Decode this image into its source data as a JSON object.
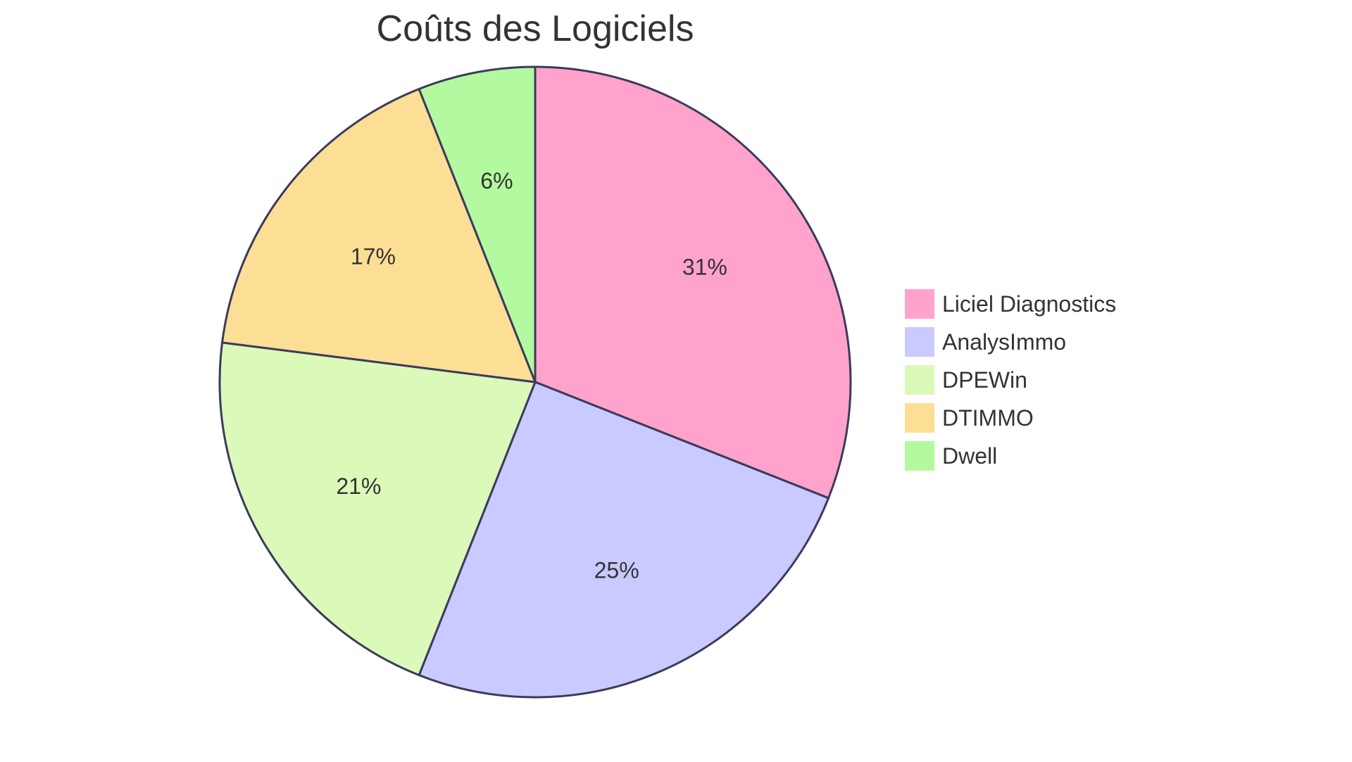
{
  "chart_data": {
    "type": "pie",
    "title": "Coûts des Logiciels",
    "categories": [
      "Liciel Diagnostics",
      "AnalysImmo",
      "DPEWin",
      "DTIMMO",
      "Dwell"
    ],
    "values": [
      31,
      25,
      21,
      17,
      6
    ],
    "labels": [
      "31%",
      "25%",
      "21%",
      "17%",
      "6%"
    ],
    "colors": [
      "#ffa3cc",
      "#c9caff",
      "#dbf9b8",
      "#fdde95",
      "#b3f9a0"
    ],
    "stroke_color": "#3b3b5c",
    "legend_position": "right"
  }
}
